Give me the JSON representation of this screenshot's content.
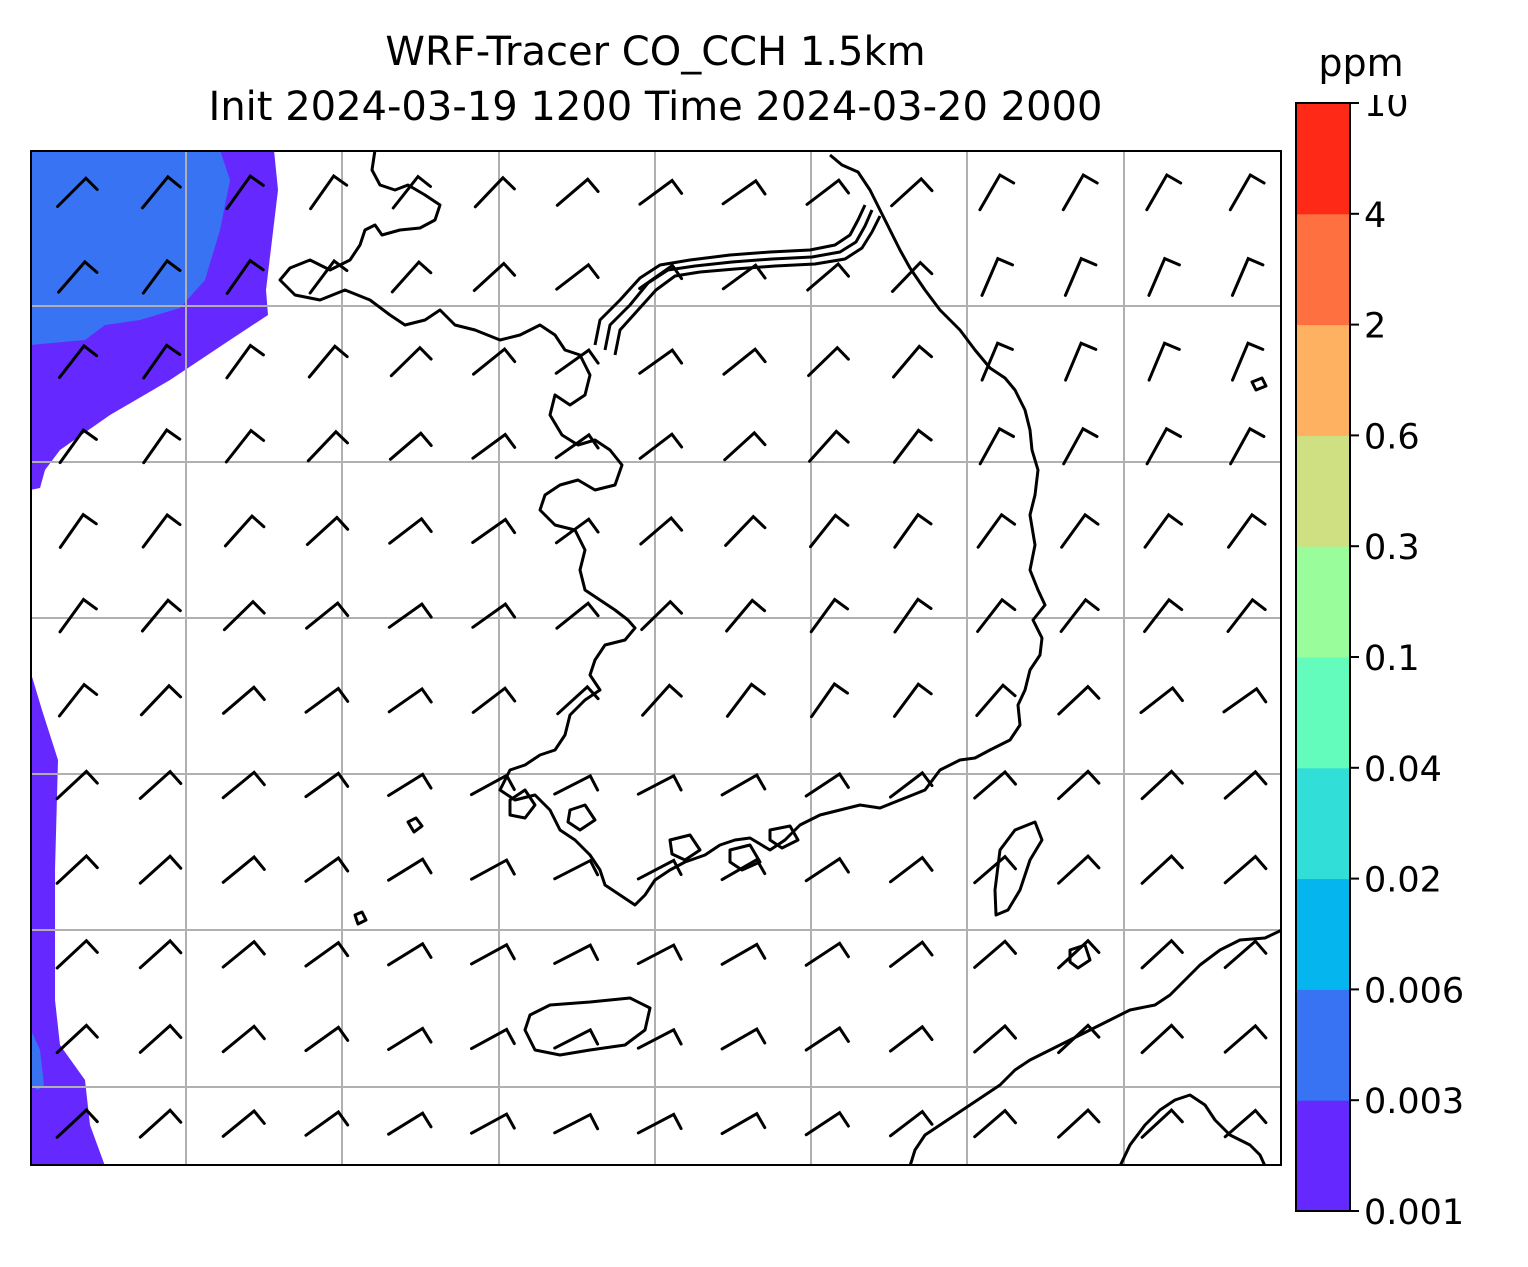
{
  "title": {
    "line1": "WRF-Tracer CO_CCH 1.5km",
    "line2": "Init 2024-03-19 1200 Time 2024-03-20 2000"
  },
  "colorbar": {
    "unit": "ppm",
    "tick_labels": [
      "0.001",
      "0.003",
      "0.006",
      "0.02",
      "0.04",
      "0.1",
      "0.3",
      "0.6",
      "2",
      "4",
      "10"
    ],
    "colors": [
      "#6529ff",
      "#3773f3",
      "#04b5ee",
      "#31dfd8",
      "#64fcbd",
      "#9afd9c",
      "#cee081",
      "#feb161",
      "#ff7040",
      "#fe2917"
    ]
  },
  "map": {
    "variable": "CO_CCH tracer concentration with wind barbs",
    "colors": {
      "land_outline": "#000000",
      "gridline": "#b0b0b0",
      "tracer_low": "#6529ff",
      "tracer_mid": "#3773f3"
    }
  }
}
